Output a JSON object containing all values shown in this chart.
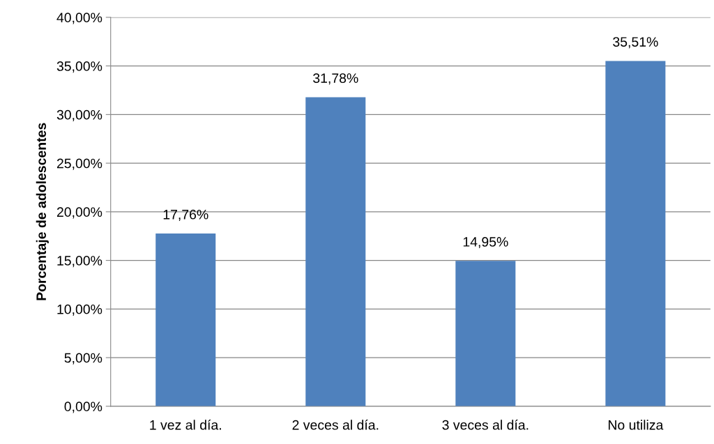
{
  "chart_data": {
    "type": "bar",
    "ylabel": "Porcentaje de adolescentes",
    "categories": [
      "1 vez al día.",
      "2 veces al día.",
      "3 veces al día.",
      "No utiliza"
    ],
    "values": [
      17.76,
      31.78,
      14.95,
      35.51
    ],
    "value_labels": [
      "17,76%",
      "31,78%",
      "14,95%",
      "35,51%"
    ],
    "color": "#4f81bd",
    "ylim": [
      0,
      40
    ],
    "yticks": [
      {
        "value": 0,
        "label": "0,00%"
      },
      {
        "value": 5,
        "label": "5,00%"
      },
      {
        "value": 10,
        "label": "10,00%"
      },
      {
        "value": 15,
        "label": "15,00%"
      },
      {
        "value": 20,
        "label": "20,00%"
      },
      {
        "value": 25,
        "label": "25,00%"
      },
      {
        "value": 30,
        "label": "30,00%"
      },
      {
        "value": 35,
        "label": "35,00%"
      },
      {
        "value": 40,
        "label": "40,00%"
      }
    ],
    "grid": "y",
    "legend": false
  }
}
